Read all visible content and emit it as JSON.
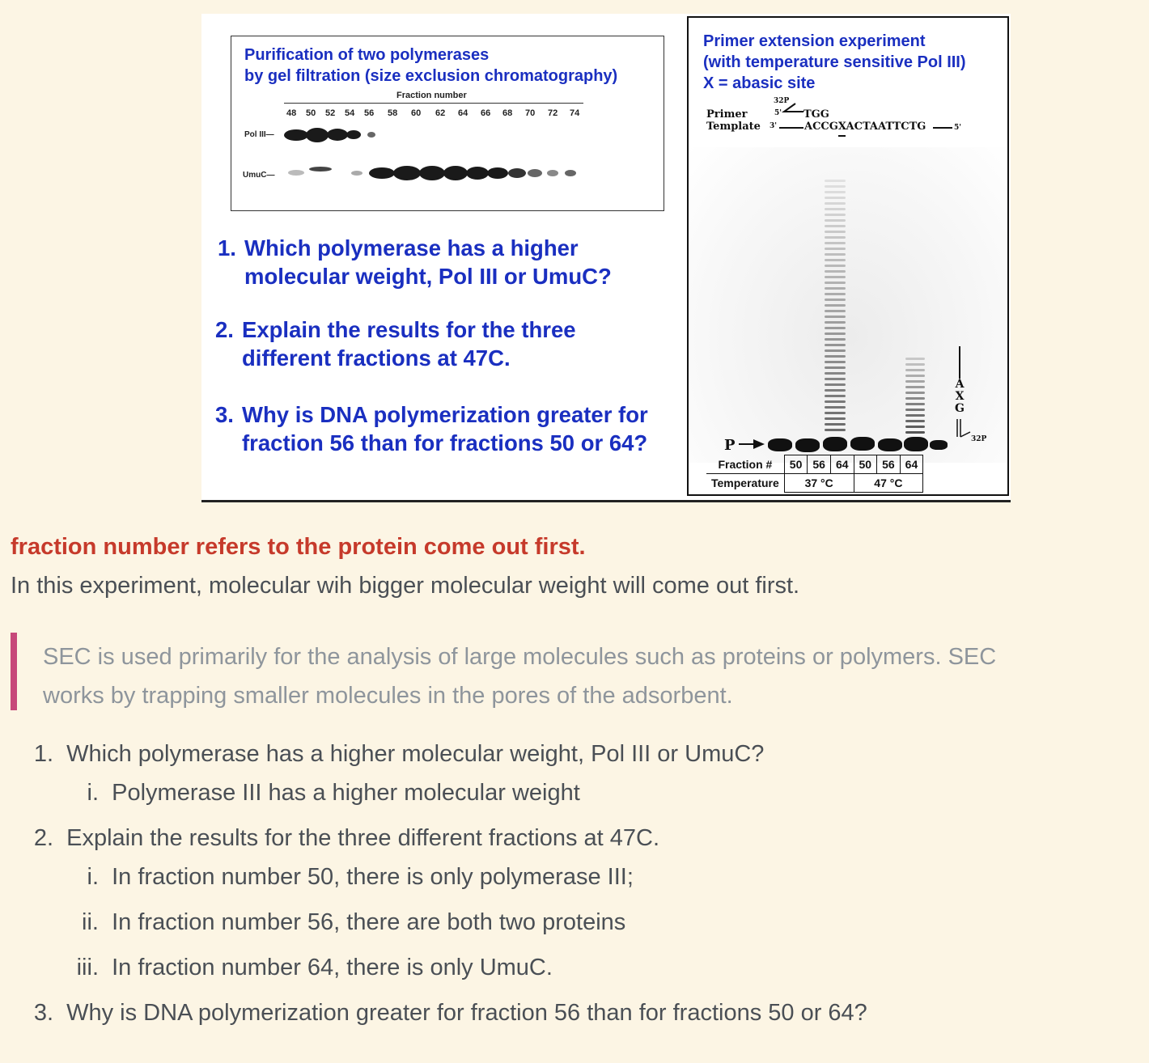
{
  "slide": {
    "gel_panel": {
      "title_line1": "Purification of two polymerases",
      "title_line2": "by gel filtration (size exclusion chromatography)",
      "fraction_axis_title": "Fraction number",
      "fraction_ticks": [
        "48",
        "50",
        "52",
        "54",
        "56",
        "58",
        "60",
        "62",
        "64",
        "66",
        "68",
        "70",
        "72",
        "74"
      ],
      "lane_pol3": "Pol III—",
      "lane_umuc": "UmuC—"
    },
    "questions": [
      {
        "num": "1.",
        "line1": "Which polymerase has a higher",
        "line2": "molecular weight, Pol III or UmuC?"
      },
      {
        "num": "2.",
        "line1": "Explain the results for the three",
        "line2": "different fractions at 47C."
      },
      {
        "num": "3.",
        "line1": "Why is DNA polymerization greater for",
        "line2": "fraction 56 than for fractions 50 or 64?"
      }
    ],
    "primer_panel": {
      "title_line1": "Primer extension experiment",
      "title_line2": "(with temperature sensitive Pol III)",
      "title_line3": "X = abasic site",
      "label_32p": "32P",
      "primer_label": "Primer",
      "template_label": "Template",
      "five_prime": "5'",
      "three_prime": "3'",
      "primer_seq": "TGG",
      "template_seq": "ACCGXACTAATTCTG",
      "template_end": "5'",
      "p_label": "P",
      "side_letters": [
        "A",
        "X",
        "G"
      ],
      "side_32p": "32P",
      "table": {
        "row1_label": "Fraction #",
        "fractions": [
          "50",
          "56",
          "64",
          "50",
          "56",
          "64"
        ],
        "row2_label": "Temperature",
        "temps": [
          "37 °C",
          "47 °C"
        ]
      }
    }
  },
  "notes": {
    "highlight": "fraction number refers to the protein come out first.",
    "body": "In this experiment, molecular wih bigger molecular weight will come out first.",
    "quote_line1": "SEC is used primarily for the analysis of large molecules such as proteins or polymers. SEC",
    "quote_line2": "works by trapping smaller molecules in the pores of the adsorbent.",
    "list": [
      {
        "num": "1.",
        "text": "Which polymerase has a higher molecular weight, Pol III or UmuC?",
        "sub": [
          {
            "num": "i.",
            "text": "Polymerase III has a higher molecular weight"
          }
        ]
      },
      {
        "num": "2.",
        "text": "Explain the results for the three different fractions at 47C.",
        "sub": [
          {
            "num": "i.",
            "text": "In fraction number 50, there is only polymerase III;"
          },
          {
            "num": "ii.",
            "text": "In fraction number 56, there are both two proteins"
          },
          {
            "num": "iii.",
            "text": "In fraction number 64, there is only UmuC."
          }
        ]
      },
      {
        "num": "3.",
        "text": "Why is DNA polymerization greater for fraction 56 than for fractions 50 or 64?",
        "sub": []
      }
    ]
  }
}
